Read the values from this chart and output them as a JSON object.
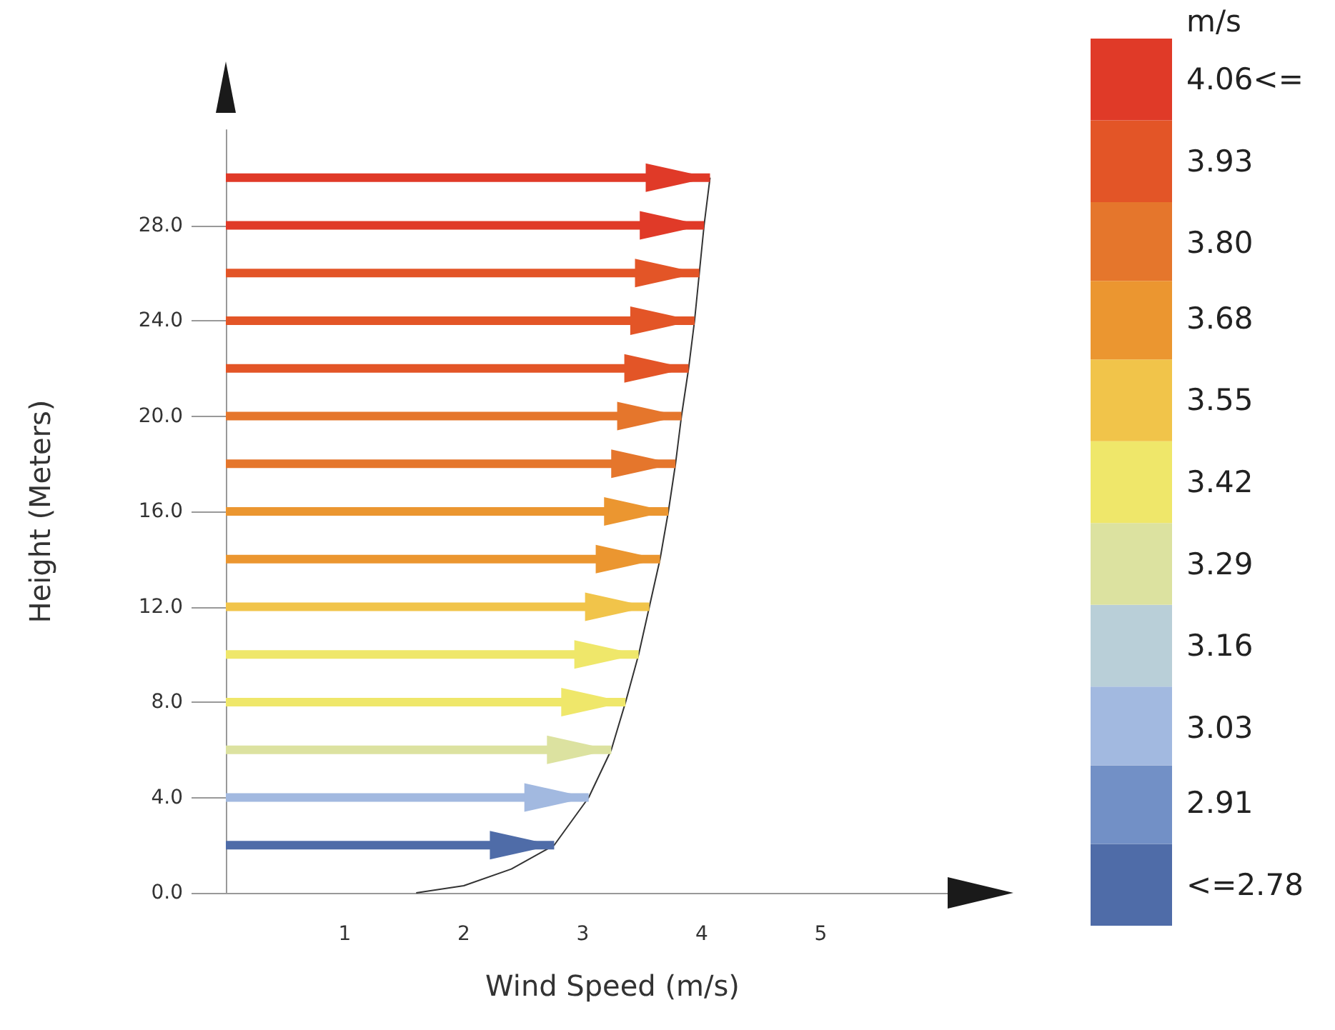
{
  "chart_data": {
    "type": "bar",
    "orientation": "horizontal",
    "xlabel": "Wind Speed (m/s)",
    "ylabel": "Height (Meters)",
    "clabel": "m/s",
    "grid": false,
    "xlim": [
      0,
      6.5
    ],
    "xticks": [
      1,
      2,
      3,
      4,
      5
    ],
    "ylim": [
      0,
      32
    ],
    "yticks": [
      {
        "value": 0,
        "label": "0.0"
      },
      {
        "value": 4,
        "label": "4.0"
      },
      {
        "value": 8,
        "label": "8.0"
      },
      {
        "value": 12,
        "label": "12.0"
      },
      {
        "value": 16,
        "label": "16.0"
      },
      {
        "value": 20,
        "label": "20.0"
      },
      {
        "value": 24,
        "label": "24.0"
      },
      {
        "value": 28,
        "label": "28.0"
      }
    ],
    "clim": [
      2.715,
      4.125
    ],
    "cticks": [
      {
        "value": 2.78,
        "label": "<=2.78"
      },
      {
        "value": 2.91,
        "label": "2.91"
      },
      {
        "value": 3.03,
        "label": "3.03"
      },
      {
        "value": 3.16,
        "label": "3.16"
      },
      {
        "value": 3.29,
        "label": "3.29"
      },
      {
        "value": 3.42,
        "label": "3.42"
      },
      {
        "value": 3.55,
        "label": "3.55"
      },
      {
        "value": 3.68,
        "label": "3.68"
      },
      {
        "value": 3.8,
        "label": "3.80"
      },
      {
        "value": 3.93,
        "label": "3.93"
      },
      {
        "value": 4.06,
        "label": "4.06<="
      }
    ],
    "colors": [
      "#4f6ca8",
      "#7290c6",
      "#a2b9e0",
      "#b9cfd8",
      "#dce2a0",
      "#efe76a",
      "#f1c44a",
      "#eb9630",
      "#e5762c",
      "#e35527",
      "#e03a28"
    ],
    "series": [
      {
        "x": [
          2,
          4,
          6,
          8,
          10,
          12,
          14,
          16,
          18,
          20,
          22,
          24,
          26,
          28,
          30
        ],
        "values": [
          2.76,
          3.05,
          3.24,
          3.36,
          3.47,
          3.56,
          3.65,
          3.72,
          3.78,
          3.83,
          3.89,
          3.94,
          3.98,
          4.02,
          4.07
        ],
        "colors": [
          "#4f6ca8",
          "#a2b9e0",
          "#dce2a0",
          "#efe76a",
          "#efe76a",
          "#f1c44a",
          "#eb9630",
          "#eb9630",
          "#e5762c",
          "#e5762c",
          "#e35527",
          "#e35527",
          "#e35527",
          "#e03a28",
          "#e03a28"
        ]
      },
      {
        "type": "line",
        "x": [
          0,
          0.3,
          1,
          2,
          4,
          6,
          8,
          10,
          12,
          14,
          16,
          18,
          20,
          22,
          24,
          26,
          28,
          30
        ],
        "values": [
          1.6,
          2.0,
          2.4,
          2.76,
          3.05,
          3.24,
          3.36,
          3.47,
          3.56,
          3.65,
          3.72,
          3.78,
          3.83,
          3.89,
          3.94,
          3.98,
          4.02,
          4.07
        ],
        "color": "#333333",
        "marker": "none"
      }
    ]
  }
}
